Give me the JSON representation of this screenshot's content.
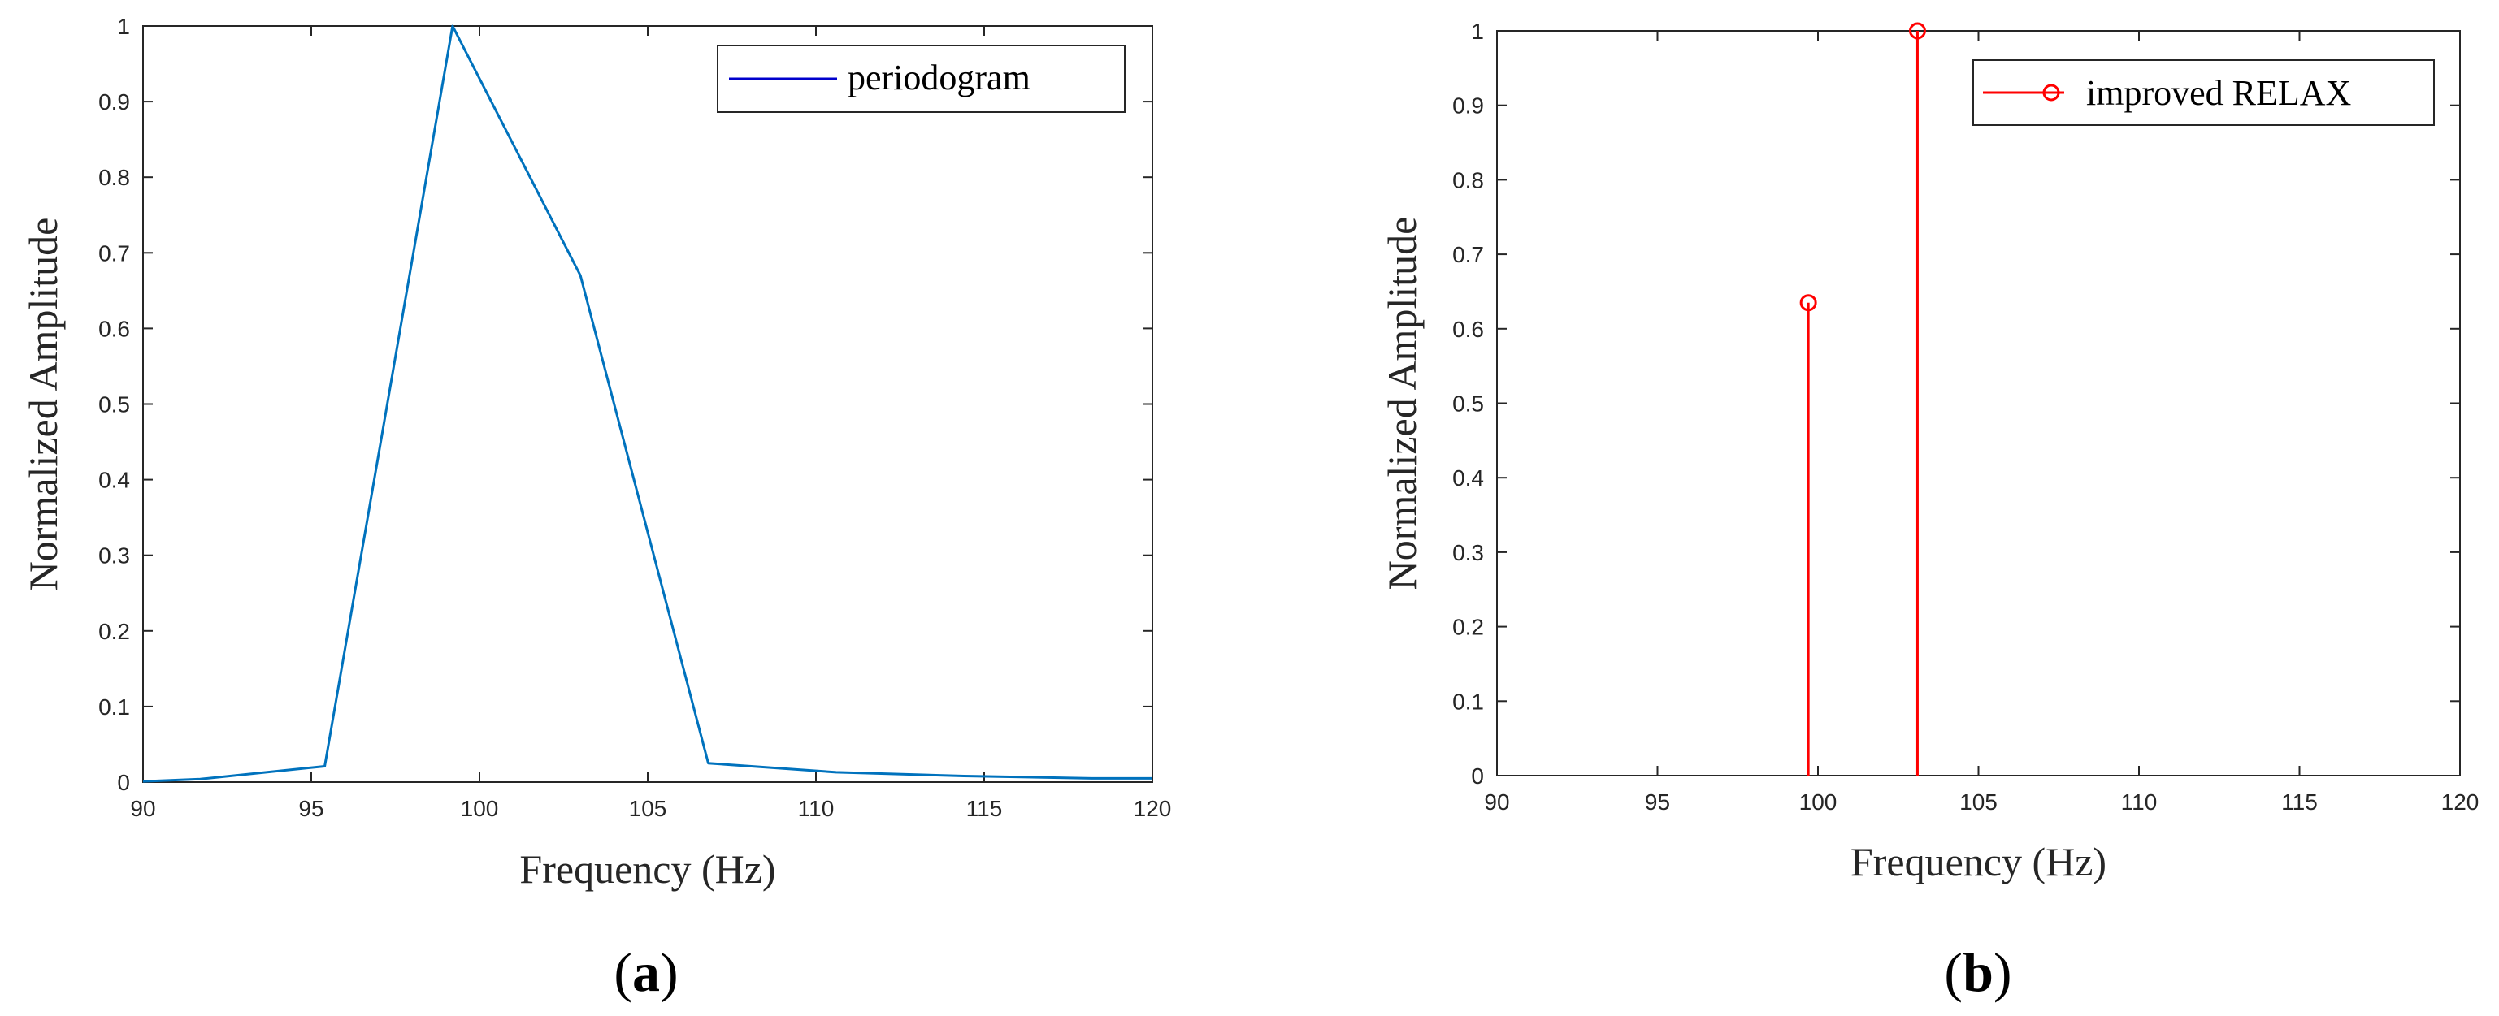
{
  "chart_data": [
    {
      "type": "line",
      "caption_open": "(",
      "caption_letter": "a",
      "caption_close": ")",
      "xlabel": "Frequency (Hz)",
      "ylabel": "Normalized Amplitude",
      "xlim": [
        90,
        120
      ],
      "ylim": [
        0,
        1
      ],
      "xticks": [
        "90",
        "95",
        "100",
        "105",
        "110",
        "115",
        "120"
      ],
      "yticks": [
        "0",
        "0.1",
        "0.2",
        "0.3",
        "0.4",
        "0.5",
        "0.6",
        "0.7",
        "0.8",
        "0.9",
        "1"
      ],
      "grid": false,
      "legend_position": "top-right",
      "series": [
        {
          "name": "periodogram",
          "color": "#0072BD",
          "legend_line_color": "#0000CC",
          "x": [
            90,
            91.7,
            95.4,
            99.2,
            103.0,
            106.8,
            110.6,
            114.4,
            118.2,
            120
          ],
          "y": [
            0.001,
            0.004,
            0.021,
            1.0,
            0.67,
            0.025,
            0.013,
            0.008,
            0.005,
            0.005
          ]
        }
      ]
    },
    {
      "type": "stem",
      "caption_open": "(",
      "caption_letter": "b",
      "caption_close": ")",
      "xlabel": "Frequency (Hz)",
      "ylabel": "Normalized Amplitude",
      "xlim": [
        90,
        120
      ],
      "ylim": [
        0,
        1
      ],
      "xticks": [
        "90",
        "95",
        "100",
        "105",
        "110",
        "115",
        "120"
      ],
      "yticks": [
        "0",
        "0.1",
        "0.2",
        "0.3",
        "0.4",
        "0.5",
        "0.6",
        "0.7",
        "0.8",
        "0.9",
        "1"
      ],
      "grid": false,
      "legend_position": "top-right",
      "series": [
        {
          "name": "improved RELAX",
          "color": "#FF0000",
          "x": [
            99.7,
            103.1
          ],
          "y": [
            0.635,
            1.0
          ]
        }
      ]
    }
  ]
}
